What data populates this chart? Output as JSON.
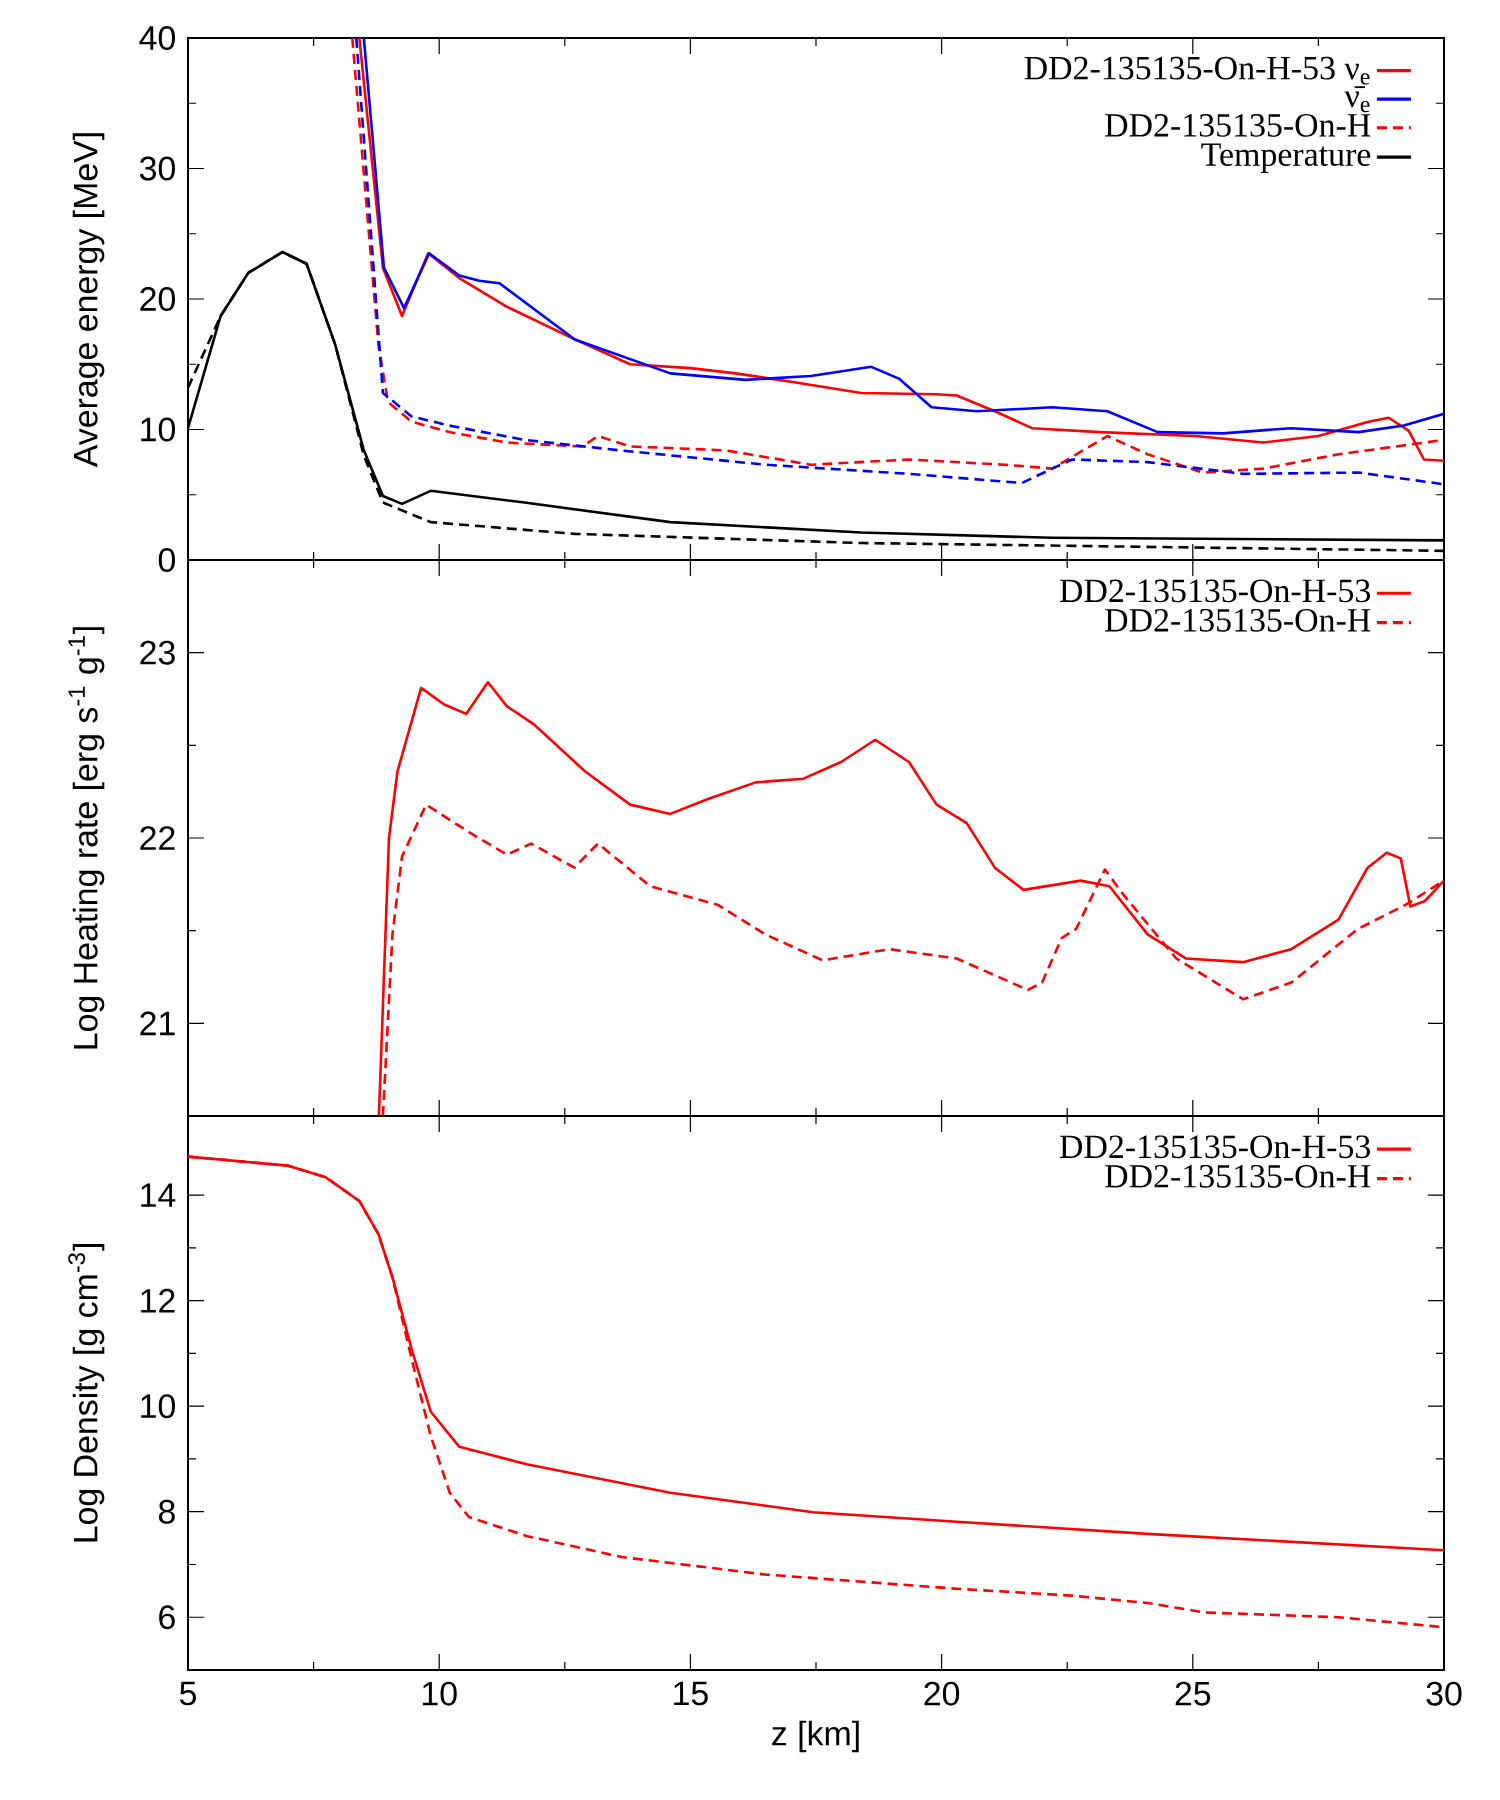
{
  "chart_data": [
    {
      "type": "line",
      "ylabel": "Average energy [MeV]",
      "xlim": [
        5,
        30
      ],
      "xticks": [
        5,
        10,
        15,
        20,
        25,
        30
      ],
      "ylim": [
        0,
        40
      ],
      "yticks": [
        0,
        10,
        20,
        30,
        40
      ],
      "tick_labels": "y",
      "legend": "top right",
      "series": [
        {
          "name": "DD2-135135-On-H-53 ν$_{e}$",
          "color": "#ff0000",
          "x": [
            8.41,
            8.88,
            9.26,
            9.78,
            10.4,
            11.35,
            12.7,
            13.8,
            15.0,
            15.9,
            17.1,
            18.4,
            19.9,
            20.3,
            21.06,
            21.8,
            23.15,
            25.05,
            26.4,
            27.5,
            28.5,
            28.9,
            29.3,
            29.6,
            30
          ],
          "values": [
            40,
            22.4,
            18.7,
            23.5,
            21.6,
            19.4,
            16.9,
            15.0,
            14.7,
            14.3,
            13.6,
            12.8,
            12.7,
            12.6,
            11.4,
            10.1,
            9.8,
            9.5,
            9.0,
            9.5,
            10.6,
            10.9,
            9.9,
            7.7,
            7.6
          ]
        },
        {
          "name": "ν̄$_{e}$",
          "color": "#0000ff",
          "x": [
            8.5,
            8.9,
            9.3,
            9.8,
            10.4,
            10.8,
            11.2,
            12.7,
            14.6,
            16.1,
            17.4,
            18.6,
            19.15,
            19.8,
            20.7,
            22.2,
            23.3,
            24.3,
            25.6,
            26.95,
            28.3,
            29.2,
            30
          ],
          "values": [
            40,
            22.4,
            19.3,
            23.5,
            21.8,
            21.4,
            21.2,
            16.9,
            14.3,
            13.8,
            14.1,
            14.8,
            13.9,
            11.7,
            11.4,
            11.7,
            11.4,
            9.8,
            9.7,
            10.1,
            9.8,
            10.3,
            11.2
          ]
        },
        {
          "name": "DD2-135135-On-H",
          "color": "#ff0000",
          "line_style": "dashed",
          "x": [
            8.27,
            8.79,
            8.98,
            9.45,
            10.2,
            11.35,
            12.3,
            12.85,
            13.16,
            13.8,
            15.7,
            17.4,
            19.35,
            21.25,
            22.2,
            23.3,
            24.1,
            25.2,
            26.4,
            27.9,
            30
          ],
          "values": [
            40,
            16.5,
            12.1,
            10.6,
            9.8,
            9.0,
            8.8,
            8.7,
            9.5,
            8.7,
            8.4,
            7.3,
            7.7,
            7.3,
            7.0,
            9.5,
            8.1,
            6.7,
            7.0,
            8.1,
            9.2
          ]
        },
        {
          "name": "Temperature",
          "color": "#000000",
          "x": [
            5,
            5.65,
            6.2,
            6.88,
            7.36,
            7.93,
            8.5,
            8.88,
            9.26,
            9.83,
            11.7,
            14.6,
            18.4,
            22.2,
            30
          ],
          "values": [
            10.1,
            18.7,
            22.0,
            23.6,
            22.7,
            16.5,
            8.4,
            4.9,
            4.3,
            5.3,
            4.4,
            2.9,
            2.1,
            1.7,
            1.5
          ]
        },
        {
          "color": "#0000ff",
          "line_style": "dashed",
          "x": [
            8.35,
            8.88,
            9.45,
            10.2,
            11.7,
            13.6,
            16.5,
            19.35,
            21.6,
            22.2,
            22.6,
            24.1,
            26.0,
            28.3,
            30
          ],
          "values": [
            40,
            12.8,
            11.0,
            10.3,
            9.2,
            8.4,
            7.3,
            6.6,
            5.9,
            7.0,
            7.7,
            7.5,
            6.6,
            6.7,
            5.8
          ]
        },
        {
          "color": "#000000",
          "line_style": "dashed",
          "x": [
            5,
            5.65,
            6.2,
            6.88,
            7.36,
            7.93,
            8.5,
            8.88,
            9.83,
            12.7,
            18.4,
            30
          ],
          "values": [
            13.2,
            18.7,
            22.0,
            23.6,
            22.7,
            16.5,
            8.0,
            4.4,
            2.9,
            2.0,
            1.3,
            0.7
          ]
        }
      ]
    },
    {
      "type": "line",
      "ylabel": "Log Heating rate [erg s$^{-1}$ g$^{-1}$]",
      "xlim": [
        5,
        30
      ],
      "xticks": [
        5,
        10,
        15,
        20,
        25,
        30
      ],
      "ylim": [
        20.5,
        23.5
      ],
      "yticks": [
        21,
        22,
        23
      ],
      "tick_labels": "y",
      "legend": "top right",
      "series": [
        {
          "name": "DD2-135135-On-H-53",
          "color": "#ff0000",
          "x": [
            8.8,
            9.0,
            9.17,
            9.64,
            10.1,
            10.54,
            10.97,
            11.35,
            11.9,
            12.9,
            13.8,
            14.6,
            15.35,
            16.3,
            17.25,
            18.0,
            18.68,
            19.35,
            19.9,
            20.5,
            21.06,
            21.63,
            22.77,
            23.34,
            24.1,
            24.86,
            26.0,
            26.96,
            27.9,
            28.48,
            28.86,
            29.14,
            29.33,
            29.62,
            30
          ],
          "values": [
            20.5,
            22.0,
            22.36,
            22.81,
            22.72,
            22.67,
            22.84,
            22.71,
            22.61,
            22.36,
            22.18,
            22.13,
            22.21,
            22.3,
            22.32,
            22.41,
            22.53,
            22.41,
            22.18,
            22.08,
            21.84,
            21.72,
            21.77,
            21.74,
            21.48,
            21.35,
            21.33,
            21.4,
            21.56,
            21.84,
            21.92,
            21.89,
            21.63,
            21.66,
            21.77
          ]
        },
        {
          "name": "DD2-135135-On-H",
          "color": "#ff0000",
          "line_style": "dashed",
          "x": [
            8.88,
            9.07,
            9.26,
            9.74,
            10.6,
            11.35,
            11.83,
            12.69,
            13.16,
            14.2,
            15.54,
            16.49,
            17.63,
            18.96,
            20.3,
            21.72,
            22.0,
            22.39,
            22.68,
            23.25,
            23.63,
            24.67,
            26.0,
            26.96,
            28.29,
            29.24,
            30
          ],
          "values": [
            20.5,
            21.48,
            21.9,
            22.18,
            22.03,
            21.91,
            21.97,
            21.84,
            21.97,
            21.74,
            21.64,
            21.48,
            21.34,
            21.4,
            21.35,
            21.18,
            21.22,
            21.46,
            21.51,
            21.83,
            21.69,
            21.35,
            21.13,
            21.22,
            21.51,
            21.64,
            21.77
          ]
        }
      ]
    },
    {
      "type": "line",
      "xlabel": "z [km]",
      "ylabel": "Log Density [g cm$^{-3}$]",
      "xlim": [
        5,
        30
      ],
      "xticks": [
        5,
        10,
        15,
        20,
        25,
        30
      ],
      "ylim": [
        5,
        15.5
      ],
      "yticks": [
        6,
        8,
        10,
        12,
        14
      ],
      "legend": "top right",
      "series": [
        {
          "name": "DD2-135135-On-H-53",
          "color": "#ff0000",
          "x": [
            5,
            6.98,
            7.74,
            8.41,
            8.79,
            9.07,
            9.45,
            9.83,
            10.4,
            11.74,
            14.6,
            17.44,
            20.3,
            24.1,
            30
          ],
          "values": [
            14.73,
            14.56,
            14.34,
            13.89,
            13.26,
            12.44,
            11.08,
            9.9,
            9.23,
            8.9,
            8.36,
            7.99,
            7.81,
            7.58,
            7.27
          ]
        },
        {
          "name": "DD2-135135-On-H",
          "color": "#ff0000",
          "line_style": "dashed",
          "x": [
            5,
            6.98,
            7.74,
            8.41,
            8.79,
            9.07,
            9.45,
            9.83,
            10.21,
            10.59,
            11.74,
            13.64,
            16.49,
            20.3,
            22.58,
            24.1,
            25.24,
            27.9,
            30
          ],
          "values": [
            14.73,
            14.56,
            14.34,
            13.89,
            13.26,
            12.44,
            10.9,
            9.44,
            8.36,
            7.9,
            7.54,
            7.14,
            6.81,
            6.54,
            6.41,
            6.27,
            6.09,
            6.0,
            5.81
          ]
        }
      ]
    }
  ]
}
